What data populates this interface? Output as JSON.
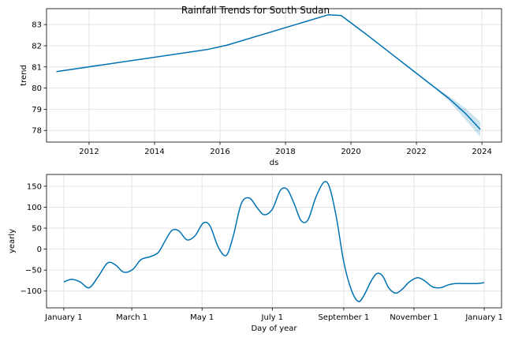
{
  "title": "Rainfall Trends for South Sudan",
  "chart_data": [
    {
      "type": "line",
      "xlabel": "ds",
      "ylabel": "trend",
      "grid": true,
      "xlim": [
        2010.7,
        2024.6
      ],
      "ylim": [
        77.45,
        83.75
      ],
      "xticks": [
        2012,
        2014,
        2016,
        2018,
        2020,
        2022,
        2024
      ],
      "yticks": [
        78,
        79,
        80,
        81,
        82,
        83
      ],
      "color": "#0072B2",
      "band_color": "#0072B2",
      "series": [
        {
          "x": [
            2011.0,
            2015.6,
            2016.2,
            2019.3,
            2019.7,
            2020.5,
            2021.5,
            2022.5,
            2023.0,
            2023.5,
            2023.95
          ],
          "values": [
            80.78,
            81.82,
            82.02,
            83.46,
            83.43,
            82.5,
            81.3,
            80.1,
            79.5,
            78.8,
            78.05
          ],
          "lower": [
            80.78,
            81.82,
            82.02,
            83.46,
            83.43,
            82.5,
            81.3,
            80.08,
            79.38,
            78.5,
            77.7
          ],
          "upper": [
            80.78,
            81.82,
            82.02,
            83.46,
            83.43,
            82.5,
            81.3,
            80.12,
            79.62,
            79.05,
            78.42
          ]
        }
      ]
    },
    {
      "type": "line",
      "xlabel": "Day of year",
      "ylabel": "yearly",
      "grid": true,
      "xlim": [
        -15,
        380
      ],
      "ylim": [
        -140,
        178
      ],
      "xticks": [
        0,
        59,
        120,
        181,
        243,
        304,
        365
      ],
      "xticklabels": [
        "January 1",
        "March 1",
        "May 1",
        "July 1",
        "September 1",
        "November 1",
        "January 1"
      ],
      "yticks": [
        -100,
        -50,
        0,
        50,
        100,
        150
      ],
      "color": "#0072B2",
      "series": [
        {
          "x": [
            0,
            7,
            14,
            22,
            30,
            38,
            45,
            52,
            60,
            67,
            75,
            82,
            88,
            94,
            100,
            107,
            114,
            121,
            127,
            134,
            141,
            147,
            154,
            161,
            168,
            174,
            181,
            188,
            194,
            200,
            206,
            212,
            219,
            226,
            231,
            237,
            243,
            250,
            256,
            261,
            267,
            272,
            277,
            282,
            288,
            294,
            300,
            307,
            313,
            320,
            327,
            334,
            340,
            346,
            353,
            359,
            365
          ],
          "values": [
            -78,
            -72,
            -78,
            -92,
            -65,
            -33,
            -38,
            -55,
            -48,
            -25,
            -18,
            -8,
            20,
            45,
            43,
            22,
            32,
            62,
            55,
            5,
            -15,
            30,
            108,
            122,
            98,
            82,
            95,
            140,
            142,
            108,
            68,
            70,
            125,
            160,
            145,
            70,
            -30,
            -100,
            -125,
            -108,
            -75,
            -58,
            -65,
            -92,
            -105,
            -95,
            -78,
            -68,
            -75,
            -90,
            -92,
            -85,
            -82,
            -82,
            -82,
            -82,
            -80
          ]
        }
      ]
    }
  ]
}
